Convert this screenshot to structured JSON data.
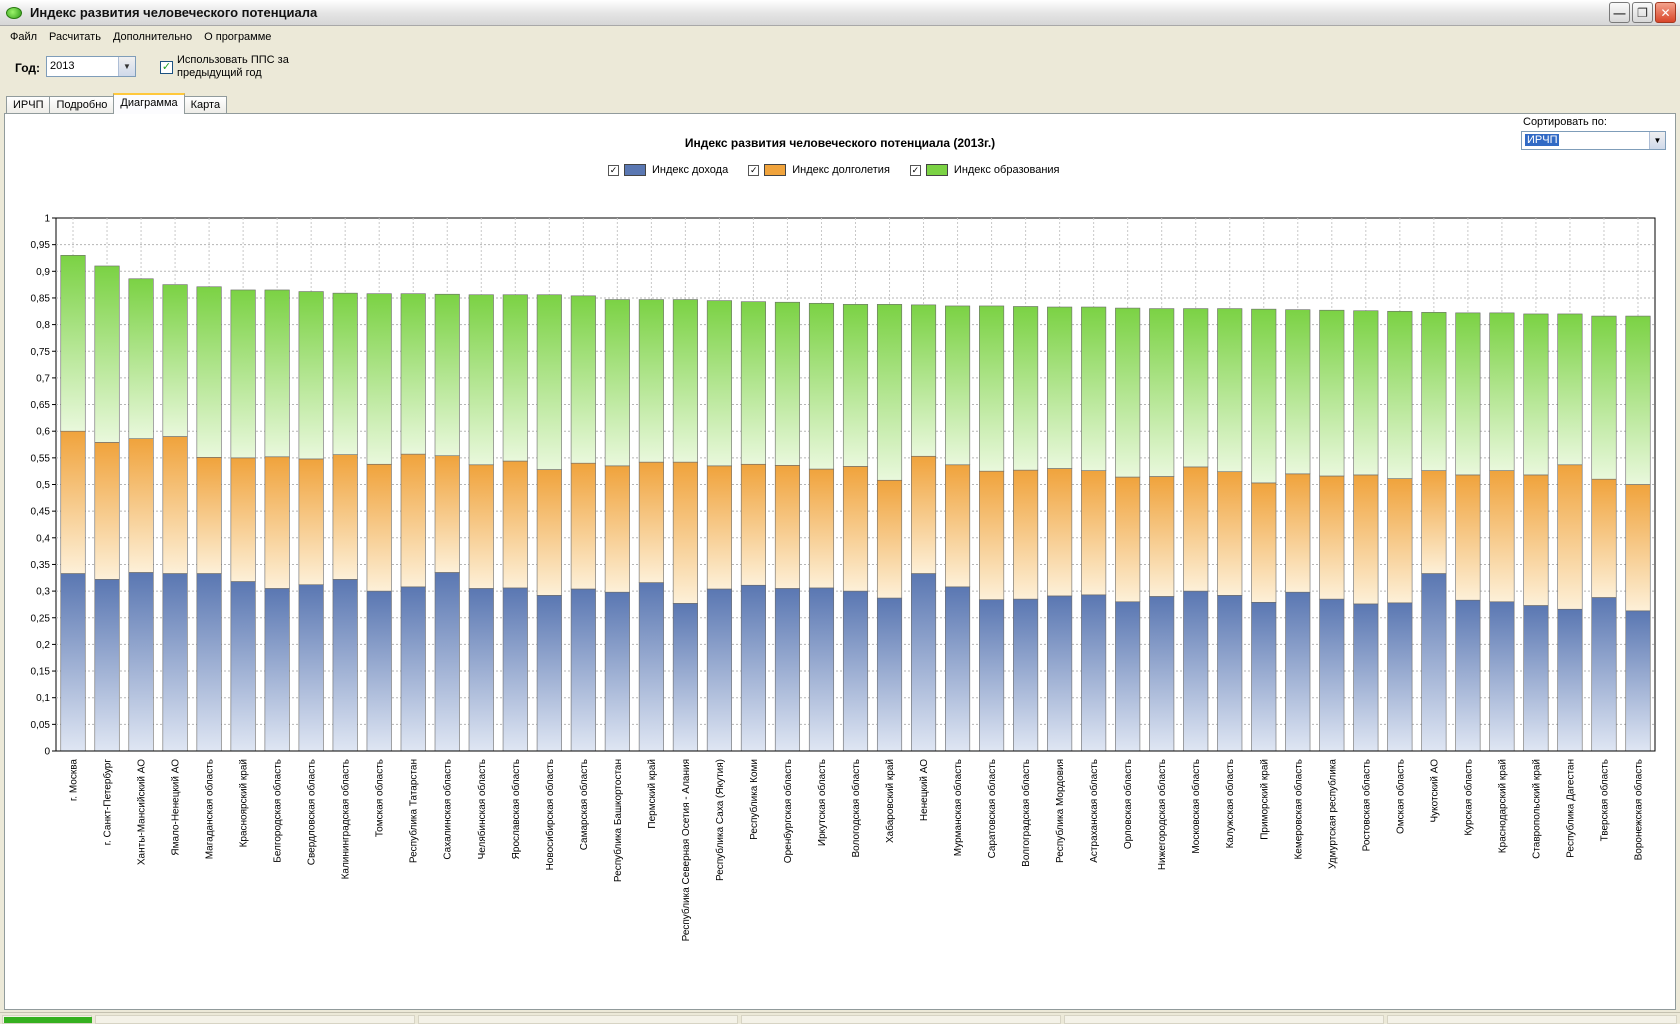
{
  "window": {
    "title": "Индекс развития человеческого потенциала"
  },
  "menu": [
    "Файл",
    "Расчитать",
    "Дополнительно",
    "О программе"
  ],
  "controls": {
    "year_label": "Год:",
    "year_value": "2013",
    "pps_checked": true,
    "pps_label": "Использовать ППС за предыдущий год"
  },
  "tabs": [
    {
      "label": "ИРЧП",
      "active": false
    },
    {
      "label": "Подробно",
      "active": false
    },
    {
      "label": "Диаграмма",
      "active": true
    },
    {
      "label": "Карта",
      "active": false
    }
  ],
  "sort": {
    "label": "Сортировать по:",
    "value": "ИРЧП"
  },
  "colors": {
    "income": "#5a77b2",
    "longevity": "#f0a33c",
    "education": "#7bd244"
  },
  "status": {
    "progress": 1.0
  },
  "chart_data": {
    "type": "bar",
    "stacked": true,
    "title": "Индекс развития человеческого потенциала (2013г.)",
    "ylim": [
      0,
      1
    ],
    "yticks": [
      "0",
      "0,05",
      "0,1",
      "0,15",
      "0,2",
      "0,25",
      "0,3",
      "0,35",
      "0,4",
      "0,45",
      "0,5",
      "0,55",
      "0,6",
      "0,65",
      "0,7",
      "0,75",
      "0,8",
      "0,85",
      "0,9",
      "0,95",
      "1"
    ],
    "series": [
      {
        "name": "Индекс дохода",
        "key": "income",
        "checked": true
      },
      {
        "name": "Индекс долголетия",
        "key": "longevity",
        "checked": true
      },
      {
        "name": "Индекс образования",
        "key": "education",
        "checked": true
      }
    ],
    "categories": [
      "г. Москва",
      "г. Санкт-Петербург",
      "Ханты-Мансийский АО",
      "Ямало-Ненецкий АО",
      "Магаданская область",
      "Красноярский край",
      "Белгородская область",
      "Свердловская область",
      "Калининградская область",
      "Томская область",
      "Республика Татарстан",
      "Сахалинская область",
      "Челябинская область",
      "Ярославская область",
      "Новосибирская область",
      "Самарская область",
      "Республика Башкортостан",
      "Пермский край",
      "Республика Северная Осетия - Алания",
      "Республика Саха (Якутия)",
      "Республика Коми",
      "Оренбургская область",
      "Иркутская область",
      "Вологодская область",
      "Хабаровский край",
      "Ненецкий АО",
      "Мурманская область",
      "Саратовская область",
      "Волгоградская область",
      "Республика Мордовия",
      "Астраханская область",
      "Орловская область",
      "Нижегородская область",
      "Московская область",
      "Калужская область",
      "Приморский край",
      "Кемеровская область",
      "Удмуртская республика",
      "Ростовская область",
      "Омская область",
      "Чукотский АО",
      "Курская область",
      "Краснодарский край",
      "Ставропольский край",
      "Республика Дагестан",
      "Тверская область",
      "Воронежская область"
    ],
    "values": [
      [
        0.333,
        0.267,
        0.33
      ],
      [
        0.322,
        0.257,
        0.331
      ],
      [
        0.335,
        0.251,
        0.3
      ],
      [
        0.333,
        0.257,
        0.285
      ],
      [
        0.333,
        0.218,
        0.32
      ],
      [
        0.318,
        0.232,
        0.315
      ],
      [
        0.305,
        0.247,
        0.313
      ],
      [
        0.312,
        0.236,
        0.314
      ],
      [
        0.322,
        0.234,
        0.303
      ],
      [
        0.3,
        0.238,
        0.32
      ],
      [
        0.308,
        0.249,
        0.301
      ],
      [
        0.335,
        0.219,
        0.303
      ],
      [
        0.305,
        0.232,
        0.319
      ],
      [
        0.306,
        0.238,
        0.312
      ],
      [
        0.292,
        0.236,
        0.328
      ],
      [
        0.304,
        0.236,
        0.314
      ],
      [
        0.298,
        0.237,
        0.312
      ],
      [
        0.316,
        0.226,
        0.305
      ],
      [
        0.277,
        0.265,
        0.305
      ],
      [
        0.304,
        0.231,
        0.31
      ],
      [
        0.311,
        0.227,
        0.305
      ],
      [
        0.305,
        0.231,
        0.306
      ],
      [
        0.306,
        0.223,
        0.311
      ],
      [
        0.3,
        0.234,
        0.304
      ],
      [
        0.287,
        0.221,
        0.33
      ],
      [
        0.333,
        0.22,
        0.284
      ],
      [
        0.308,
        0.229,
        0.298
      ],
      [
        0.284,
        0.241,
        0.31
      ],
      [
        0.285,
        0.242,
        0.307
      ],
      [
        0.291,
        0.239,
        0.303
      ],
      [
        0.293,
        0.233,
        0.307
      ],
      [
        0.28,
        0.234,
        0.317
      ],
      [
        0.29,
        0.225,
        0.315
      ],
      [
        0.3,
        0.233,
        0.297
      ],
      [
        0.292,
        0.232,
        0.306
      ],
      [
        0.279,
        0.224,
        0.326
      ],
      [
        0.298,
        0.222,
        0.308
      ],
      [
        0.285,
        0.231,
        0.311
      ],
      [
        0.276,
        0.242,
        0.308
      ],
      [
        0.278,
        0.233,
        0.314
      ],
      [
        0.333,
        0.193,
        0.297
      ],
      [
        0.283,
        0.235,
        0.304
      ],
      [
        0.28,
        0.246,
        0.296
      ],
      [
        0.273,
        0.245,
        0.302
      ],
      [
        0.266,
        0.271,
        0.283
      ],
      [
        0.288,
        0.222,
        0.306
      ],
      [
        0.263,
        0.237,
        0.316
      ]
    ]
  }
}
